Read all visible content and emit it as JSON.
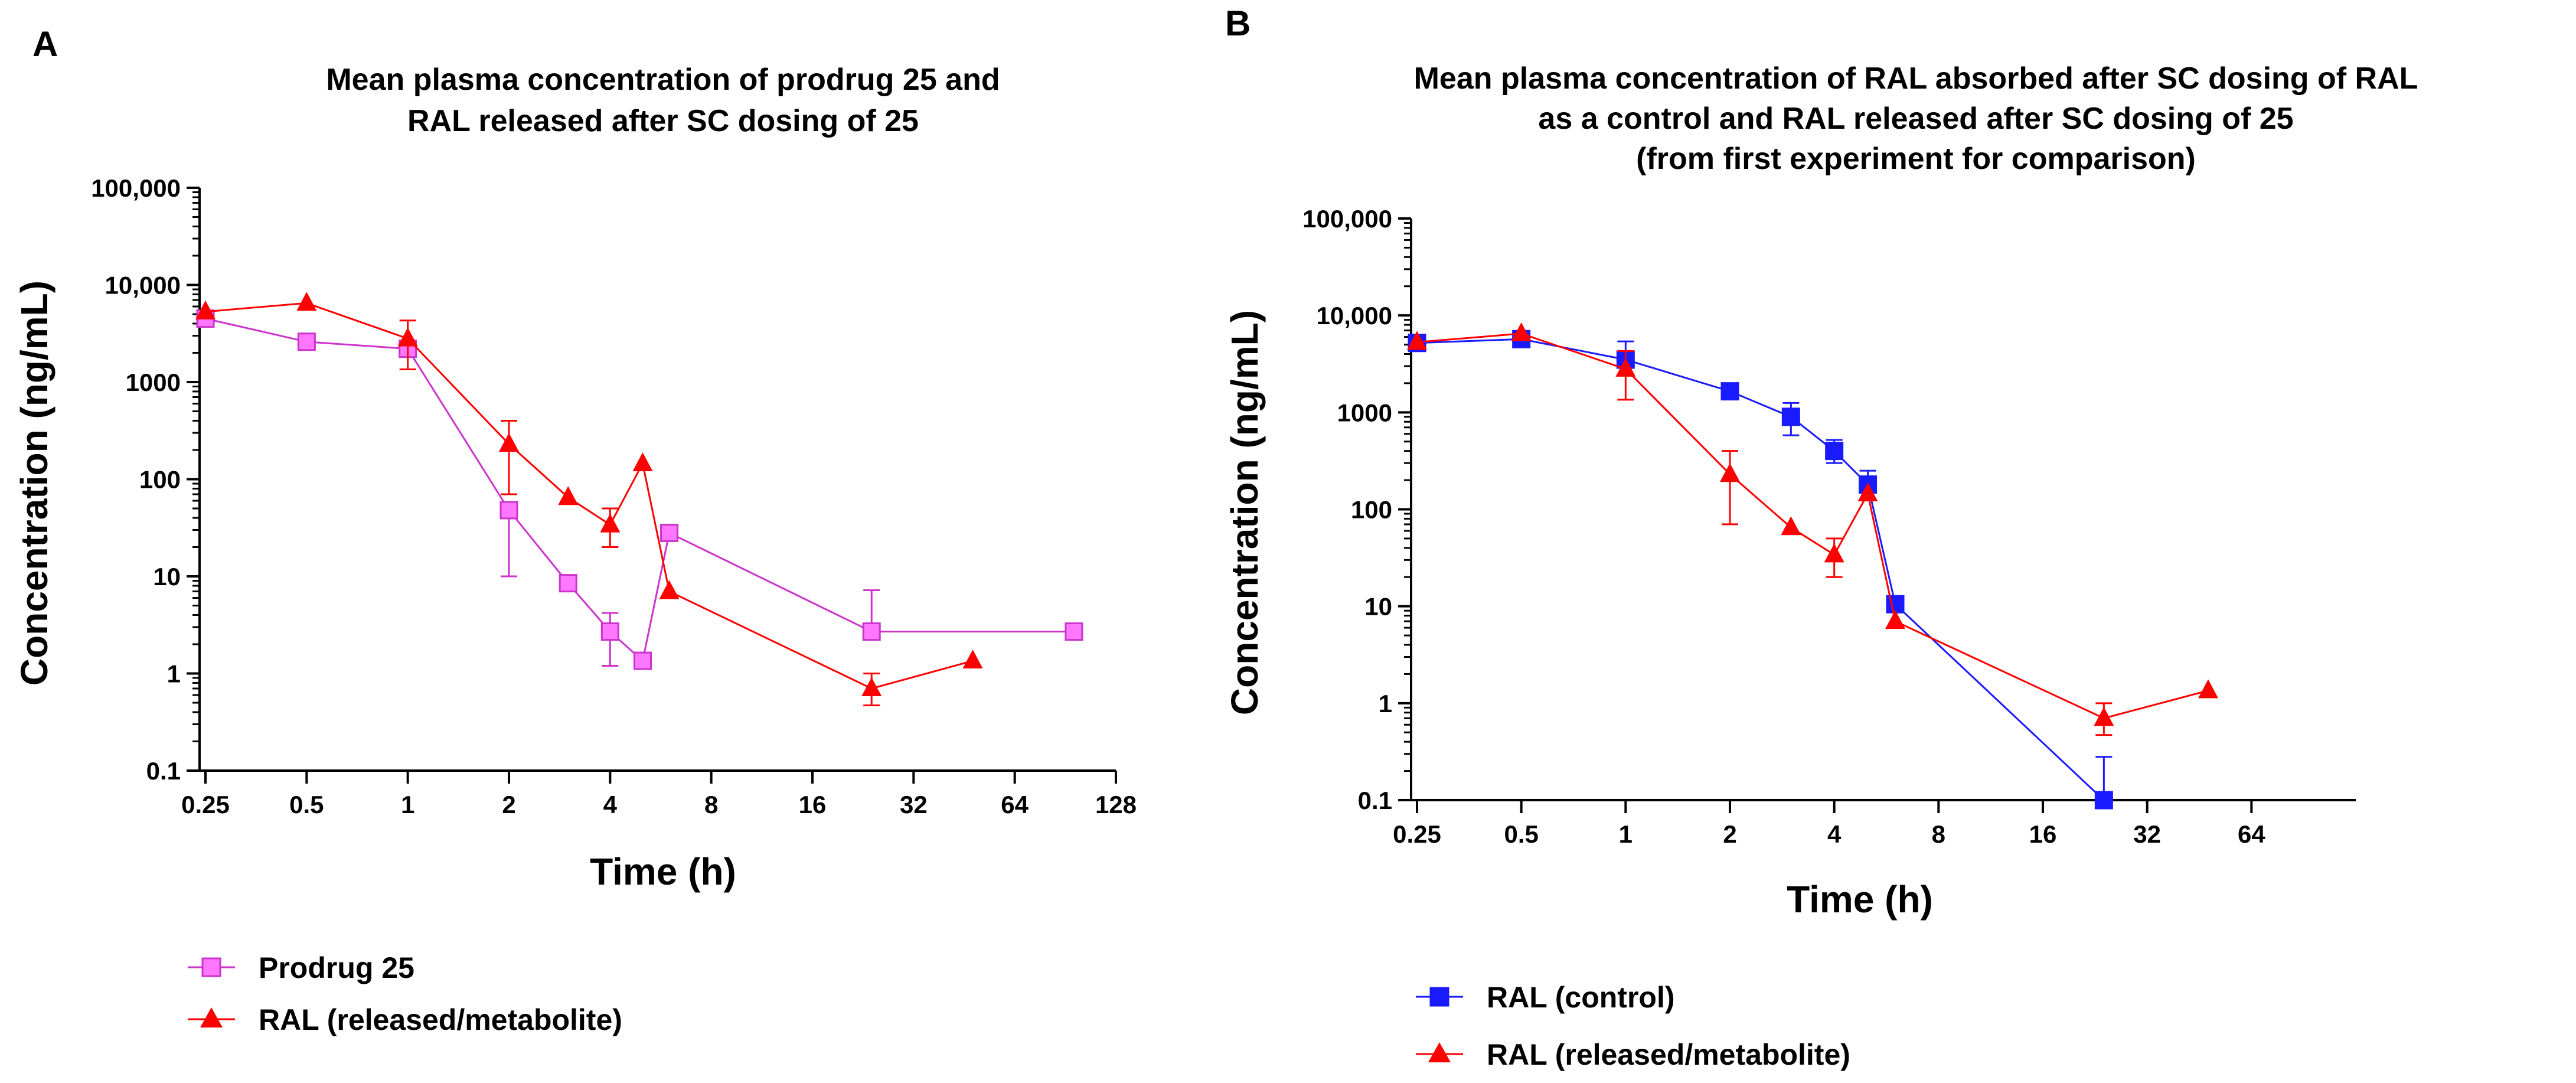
{
  "chart_data": [
    {
      "type": "line",
      "panel_label": "A",
      "title": [
        "Mean plasma concentration of prodrug 25 and",
        "RAL released after SC dosing of 25"
      ],
      "xlabel": "Time (h)",
      "ylabel": "Concentration (ng/mL)",
      "xscale": "log2",
      "yscale": "log10",
      "xlim": [
        0.25,
        128
      ],
      "ylim": [
        0.1,
        100000
      ],
      "x_ticks": [
        0.25,
        0.5,
        1,
        2,
        4,
        8,
        16,
        32,
        64,
        128
      ],
      "x_tick_labels": [
        "0.25",
        "0.5",
        "1",
        "2",
        "4",
        "8",
        "16",
        "32",
        "64",
        "128"
      ],
      "y_ticks": [
        0.1,
        1,
        10,
        100,
        1000,
        10000,
        100000
      ],
      "y_tick_labels": [
        "0.1",
        "1",
        "10",
        "100",
        "1000",
        "10,000",
        "100,000"
      ],
      "series": [
        {
          "name": "Prodrug 25",
          "color": "#cc33cc",
          "marker": "square",
          "x": [
            0.25,
            0.5,
            1,
            2,
            3,
            4,
            5,
            6,
            24,
            96
          ],
          "y": [
            4500,
            2600,
            2200,
            48,
            8.5,
            2.7,
            1.35,
            28,
            2.7,
            2.7
          ],
          "err_up": [
            0,
            0,
            0,
            0,
            0,
            4.2,
            0,
            0,
            7.2,
            0
          ],
          "err_down": [
            0,
            0,
            0,
            10,
            0,
            1.2,
            0,
            0,
            0,
            0
          ]
        },
        {
          "name": "RAL (released/metabolite)",
          "color": "#ff0000",
          "marker": "triangle",
          "x": [
            0.25,
            0.5,
            1,
            2,
            3,
            4,
            5,
            6,
            24,
            48
          ],
          "y": [
            5300,
            6500,
            2800,
            230,
            65,
            34,
            145,
            7,
            0.7,
            1.35
          ],
          "err_up": [
            0,
            0,
            4300,
            400,
            0,
            50,
            0,
            0,
            1.0,
            0
          ],
          "err_down": [
            0,
            0,
            1350,
            70,
            0,
            20,
            0,
            0,
            0.47,
            0
          ]
        }
      ]
    },
    {
      "type": "line",
      "panel_label": "B",
      "title": [
        "Mean plasma concentration of RAL absorbed after SC dosing of RAL",
        "as a control and RAL released after SC dosing of 25",
        "(from first experiment for comparison)"
      ],
      "xlabel": "Time (h)",
      "ylabel": "Concentration (ng/mL)",
      "xscale": "log2",
      "yscale": "log10",
      "xlim": [
        0.25,
        128
      ],
      "ylim": [
        0.1,
        100000
      ],
      "x_ticks": [
        0.25,
        0.5,
        1,
        2,
        4,
        8,
        16,
        32,
        64
      ],
      "x_tick_labels": [
        "0.25",
        "0.5",
        "1",
        "2",
        "4",
        "8",
        "16",
        "32",
        "64"
      ],
      "y_ticks": [
        0.1,
        1,
        10,
        100,
        1000,
        10000,
        100000
      ],
      "y_tick_labels": [
        "0.1",
        "1",
        "10",
        "100",
        "1000",
        "10,000",
        "100,000"
      ],
      "series": [
        {
          "name": "RAL (control)",
          "color": "#1a1aff",
          "marker": "square",
          "x": [
            0.25,
            0.5,
            1,
            2,
            3,
            4,
            5,
            6,
            24
          ],
          "y": [
            5200,
            5700,
            3500,
            1650,
            900,
            400,
            180,
            10.5,
            0.1
          ],
          "err_up": [
            0,
            0,
            5400,
            0,
            1250,
            520,
            250,
            0,
            0.28
          ],
          "err_down": [
            0,
            0,
            0,
            0,
            580,
            300,
            0,
            0,
            0
          ]
        },
        {
          "name": "RAL (released/metabolite)",
          "color": "#ff0000",
          "marker": "triangle",
          "x": [
            0.25,
            0.5,
            1,
            2,
            3,
            4,
            5,
            6,
            24,
            48
          ],
          "y": [
            5300,
            6500,
            2800,
            230,
            65,
            34,
            145,
            7,
            0.7,
            1.35
          ],
          "err_up": [
            0,
            0,
            4300,
            400,
            0,
            50,
            0,
            0,
            1.0,
            0
          ],
          "err_down": [
            0,
            0,
            1350,
            70,
            0,
            20,
            0,
            0,
            0.47,
            0
          ]
        }
      ]
    }
  ]
}
